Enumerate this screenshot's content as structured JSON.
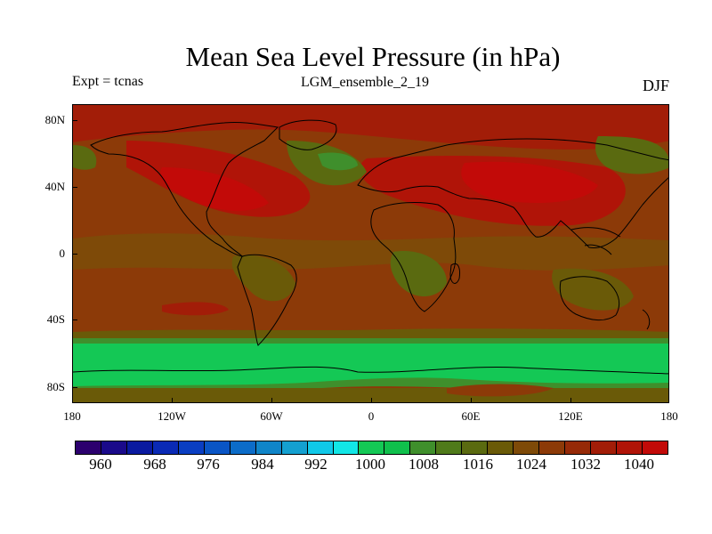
{
  "title": "Mean Sea Level Pressure (in hPa)",
  "experiment": "Expt = tcnas",
  "subtitle": "LGM_ensemble_2_19",
  "season": "DJF",
  "lat_labels": [
    "80N",
    "40N",
    "0",
    "40S",
    "80S"
  ],
  "lon_labels": [
    "180",
    "120W",
    "60W",
    "0",
    "60E",
    "120E",
    "180"
  ],
  "colorbar": {
    "labels": [
      "960",
      "968",
      "976",
      "984",
      "992",
      "1000",
      "1008",
      "1016",
      "1024",
      "1032",
      "1040"
    ],
    "colors": [
      "#2c006e",
      "#1a0a8a",
      "#0a1aa0",
      "#0a2ab5",
      "#0a3ec2",
      "#0a55c5",
      "#0c6cc8",
      "#1085c8",
      "#14a0d0",
      "#10c8e8",
      "#12e6e6",
      "#14c855",
      "#10c04c",
      "#3f8f2c",
      "#4f7a1a",
      "#5a6a10",
      "#6a5a08",
      "#7e4a08",
      "#8c3a08",
      "#962a08",
      "#a21d08",
      "#b01408",
      "#c20a08"
    ]
  },
  "map_colors": {
    "high": "#c20a08",
    "mid_high": "#a21d08",
    "mid": "#8c3a08",
    "low_mid": "#5a6a10",
    "low": "#3f8f2c",
    "trough": "#14c855",
    "coast": "#000000"
  }
}
